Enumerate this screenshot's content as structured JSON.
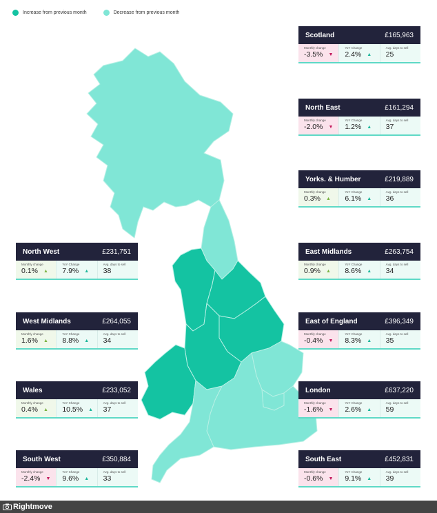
{
  "legend": {
    "increase_label": "Increase from previous month",
    "decrease_label": "Decrease from previous month",
    "increase_color": "#14c3a2",
    "decrease_color": "#80e6d6"
  },
  "regions": [
    {
      "name": "Scotland",
      "price": "£165,963",
      "monthly_label": "Monthly change",
      "monthly": "-3.5%",
      "monthly_dir": "down",
      "yoy_label": "YoY Change",
      "yoy": "2.4%",
      "days_label": "Avg. days to sell",
      "days": "25",
      "map_status": "decrease"
    },
    {
      "name": "North East",
      "price": "£161,294",
      "monthly_label": "Monthly change",
      "monthly": "-2.0%",
      "monthly_dir": "down",
      "yoy_label": "YoY Change",
      "yoy": "1.2%",
      "days_label": "Avg. days to sell",
      "days": "37",
      "map_status": "decrease"
    },
    {
      "name": "Yorks. & Humber",
      "price": "£219,889",
      "monthly_label": "Monthly change",
      "monthly": "0.3%",
      "monthly_dir": "up",
      "yoy_label": "YoY Change",
      "yoy": "6.1%",
      "days_label": "Avg. days to sell",
      "days": "36",
      "map_status": "increase"
    },
    {
      "name": "East Midlands",
      "price": "£263,754",
      "monthly_label": "Monthly change",
      "monthly": "0.9%",
      "monthly_dir": "up",
      "yoy_label": "YoY Change",
      "yoy": "8.6%",
      "days_label": "Avg. days to sell",
      "days": "34",
      "map_status": "increase"
    },
    {
      "name": "East of England",
      "price": "£396,349",
      "monthly_label": "Monthly change",
      "monthly": "-0.4%",
      "monthly_dir": "down",
      "yoy_label": "YoY Change",
      "yoy": "8.3%",
      "days_label": "Avg. days to sell",
      "days": "35",
      "map_status": "decrease"
    },
    {
      "name": "London",
      "price": "£637,220",
      "monthly_label": "Monthly change",
      "monthly": "-1.6%",
      "monthly_dir": "down",
      "yoy_label": "YoY Change",
      "yoy": "2.6%",
      "days_label": "Avg. days to sell",
      "days": "59",
      "map_status": "decrease"
    },
    {
      "name": "South East",
      "price": "£452,831",
      "monthly_label": "Monthly change",
      "monthly": "-0.6%",
      "monthly_dir": "down",
      "yoy_label": "YoY Change",
      "yoy": "9.1%",
      "days_label": "Avg. days to sell",
      "days": "39",
      "map_status": "decrease"
    },
    {
      "name": "North West",
      "price": "£231,751",
      "monthly_label": "Monthly change",
      "monthly": "0.1%",
      "monthly_dir": "up",
      "yoy_label": "YoY Change",
      "yoy": "7.9%",
      "days_label": "Avg. days to sell",
      "days": "38",
      "map_status": "increase"
    },
    {
      "name": "West Midlands",
      "price": "£264,055",
      "monthly_label": "Monthly change",
      "monthly": "1.6%",
      "monthly_dir": "up",
      "yoy_label": "YoY Change",
      "yoy": "8.8%",
      "days_label": "Avg. days to sell",
      "days": "34",
      "map_status": "increase"
    },
    {
      "name": "Wales",
      "price": "£233,052",
      "monthly_label": "Monthly change",
      "monthly": "0.4%",
      "monthly_dir": "up",
      "yoy_label": "YoY Change",
      "yoy": "10.5%",
      "days_label": "Avg. days to sell",
      "days": "37",
      "map_status": "increase"
    },
    {
      "name": "South West",
      "price": "£350,884",
      "monthly_label": "Monthly change",
      "monthly": "-2.4%",
      "monthly_dir": "down",
      "yoy_label": "YoY Change",
      "yoy": "9.6%",
      "days_label": "Avg. days to sell",
      "days": "33",
      "map_status": "decrease"
    }
  ],
  "icons": {
    "up": "up-triangle-icon",
    "down": "down-triangle-icon",
    "camera": "camera-icon"
  },
  "footer": {
    "credit": "Rightmove"
  }
}
